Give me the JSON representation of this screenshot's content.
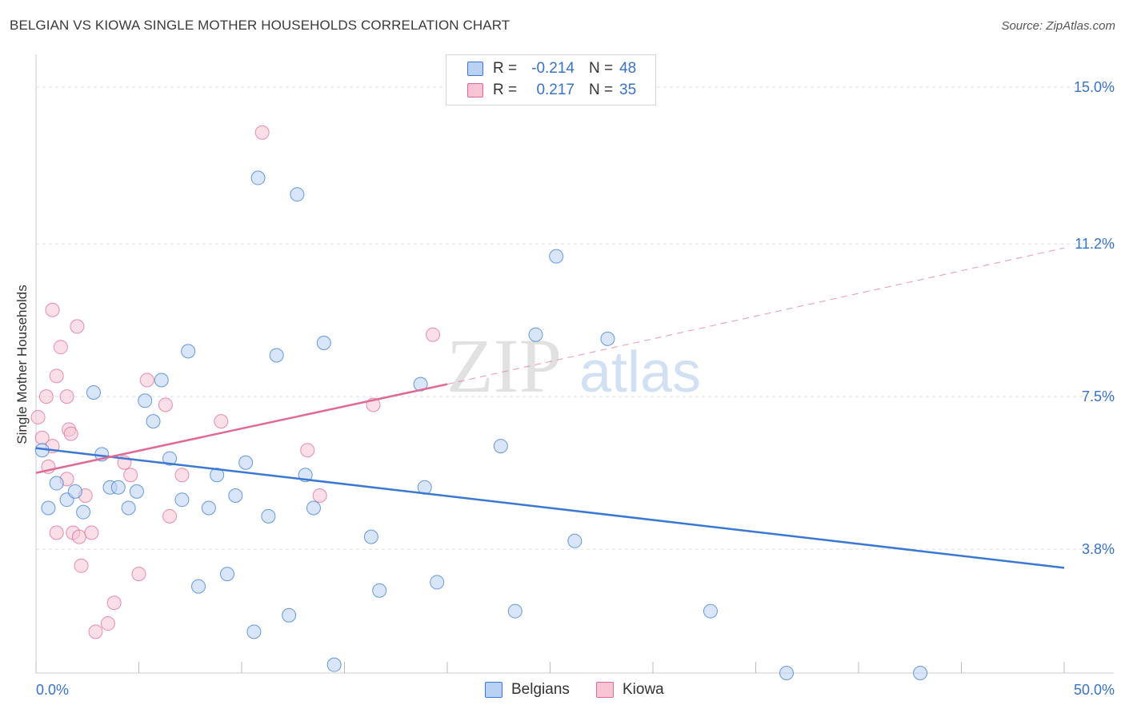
{
  "title": "BELGIAN VS KIOWA SINGLE MOTHER HOUSEHOLDS CORRELATION CHART",
  "source": "Source: ZipAtlas.com",
  "watermark": {
    "zip": "ZIP",
    "atlas": "atlas"
  },
  "legend": {
    "rows": [
      {
        "r_label": "R =",
        "r_value": "-0.214",
        "n_label": "N =",
        "n_value": "48"
      },
      {
        "r_label": "R =",
        "r_value": "0.217",
        "n_label": "N =",
        "n_value": "35"
      }
    ]
  },
  "bottom_legend": {
    "belgians": "Belgians",
    "kiowa": "Kiowa"
  },
  "chart_data": {
    "type": "scatter",
    "title": "BELGIAN VS KIOWA SINGLE MOTHER HOUSEHOLDS CORRELATION CHART",
    "xlabel": "",
    "ylabel": "Single Mother Households",
    "xlim": [
      0,
      50
    ],
    "ylim": [
      0.8,
      15.6
    ],
    "x_tick_labels": [
      "0.0%",
      "50.0%"
    ],
    "y_ticks": [
      3.8,
      7.5,
      11.2,
      15.0
    ],
    "y_tick_labels": [
      "3.8%",
      "7.5%",
      "11.2%",
      "15.0%"
    ],
    "colors": {
      "belgians": "#3a78d4",
      "kiowa": "#e06a94",
      "belgians_fill": "#b9d2f4",
      "kiowa_fill": "#f8c4d4",
      "tick_label": "#3773c7"
    },
    "series": [
      {
        "name": "Belgians",
        "r": -0.214,
        "n": 48,
        "trend": {
          "x0": 0,
          "y0": 6.25,
          "x1": 50,
          "y1": 3.35
        },
        "points": [
          [
            0.3,
            6.2
          ],
          [
            0.6,
            4.8
          ],
          [
            1.0,
            5.4
          ],
          [
            1.5,
            5.0
          ],
          [
            1.9,
            5.2
          ],
          [
            2.3,
            4.7
          ],
          [
            2.8,
            7.6
          ],
          [
            3.2,
            6.1
          ],
          [
            3.6,
            5.3
          ],
          [
            4.0,
            5.3
          ],
          [
            4.5,
            4.8
          ],
          [
            4.9,
            5.2
          ],
          [
            5.3,
            7.4
          ],
          [
            5.7,
            6.9
          ],
          [
            6.1,
            7.9
          ],
          [
            6.5,
            6.0
          ],
          [
            7.1,
            5.0
          ],
          [
            7.4,
            8.6
          ],
          [
            7.9,
            2.9
          ],
          [
            8.4,
            4.8
          ],
          [
            8.8,
            5.6
          ],
          [
            9.3,
            3.2
          ],
          [
            9.7,
            5.1
          ],
          [
            10.2,
            5.9
          ],
          [
            10.6,
            1.8
          ],
          [
            10.8,
            12.8
          ],
          [
            11.3,
            4.6
          ],
          [
            11.7,
            8.5
          ],
          [
            12.3,
            2.2
          ],
          [
            12.7,
            12.4
          ],
          [
            13.1,
            5.6
          ],
          [
            13.5,
            4.8
          ],
          [
            14.0,
            8.8
          ],
          [
            14.5,
            1.0
          ],
          [
            16.3,
            4.1
          ],
          [
            16.7,
            2.8
          ],
          [
            18.7,
            7.8
          ],
          [
            18.9,
            5.3
          ],
          [
            19.5,
            3.0
          ],
          [
            22.6,
            6.3
          ],
          [
            23.3,
            2.3
          ],
          [
            24.3,
            9.0
          ],
          [
            25.3,
            10.9
          ],
          [
            26.2,
            4.0
          ],
          [
            27.8,
            8.9
          ],
          [
            32.8,
            2.3
          ],
          [
            36.5,
            0.8
          ],
          [
            43.0,
            0.8
          ]
        ]
      },
      {
        "name": "Kiowa",
        "r": 0.217,
        "n": 35,
        "trend": {
          "x0": 0,
          "y0": 5.65,
          "x1": 20,
          "y1": 7.8,
          "x_ext": 50,
          "y_ext": 11.1
        },
        "points": [
          [
            0.1,
            7.0
          ],
          [
            0.3,
            6.5
          ],
          [
            0.5,
            7.5
          ],
          [
            0.6,
            5.8
          ],
          [
            0.8,
            6.3
          ],
          [
            0.8,
            9.6
          ],
          [
            1.0,
            8.0
          ],
          [
            1.0,
            4.2
          ],
          [
            1.2,
            8.7
          ],
          [
            1.5,
            5.5
          ],
          [
            1.5,
            7.5
          ],
          [
            1.6,
            6.7
          ],
          [
            1.7,
            6.6
          ],
          [
            1.8,
            4.2
          ],
          [
            2.0,
            9.2
          ],
          [
            2.1,
            4.1
          ],
          [
            2.2,
            3.4
          ],
          [
            2.4,
            5.1
          ],
          [
            2.7,
            4.2
          ],
          [
            2.9,
            1.8
          ],
          [
            3.5,
            2.0
          ],
          [
            3.8,
            2.5
          ],
          [
            4.3,
            5.9
          ],
          [
            4.6,
            5.6
          ],
          [
            5.0,
            3.2
          ],
          [
            5.4,
            7.9
          ],
          [
            6.3,
            7.3
          ],
          [
            6.5,
            4.6
          ],
          [
            7.1,
            5.6
          ],
          [
            9.0,
            6.9
          ],
          [
            11.0,
            13.9
          ],
          [
            13.2,
            6.2
          ],
          [
            13.8,
            5.1
          ],
          [
            16.4,
            7.3
          ],
          [
            19.3,
            9.0
          ]
        ]
      }
    ]
  }
}
